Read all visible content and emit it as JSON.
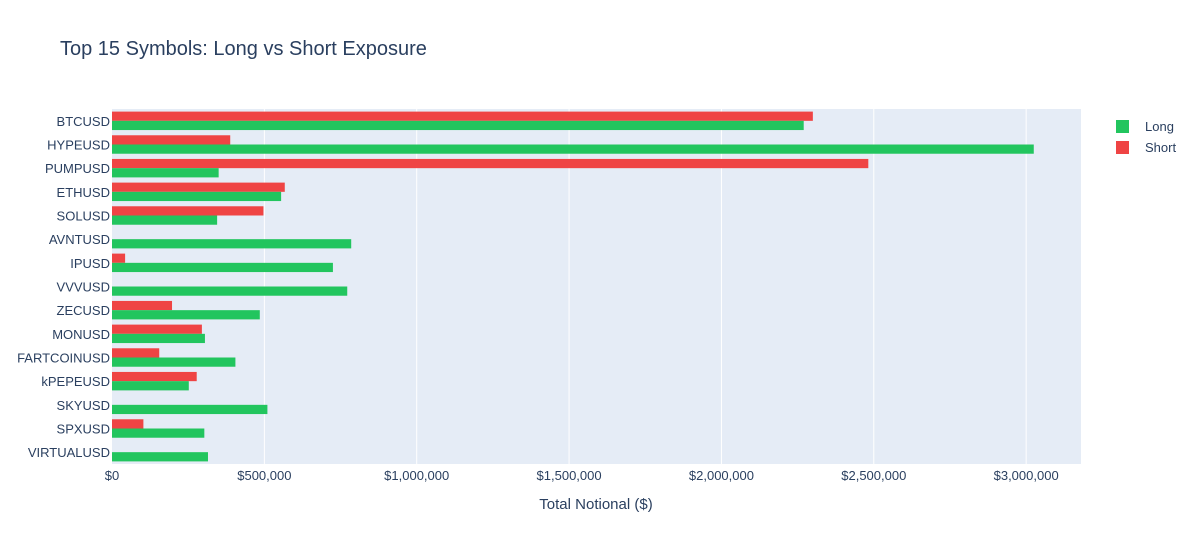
{
  "chart_data": {
    "type": "bar",
    "orientation": "horizontal",
    "title": "Top 15 Symbols: Long vs Short Exposure",
    "xlabel": "Total Notional ($)",
    "ylabel": "",
    "xlim": [
      0,
      3180000
    ],
    "x_ticks": [
      0,
      500000,
      1000000,
      1500000,
      2000000,
      2500000,
      3000000
    ],
    "x_tick_labels": [
      "$0",
      "$500,000",
      "$1,000,000",
      "$1,500,000",
      "$2,000,000",
      "$2,500,000",
      "$3,000,000"
    ],
    "grid": true,
    "legend_position": "top-right",
    "categories": [
      "BTCUSD",
      "HYPEUSD",
      "PUMPUSD",
      "ETHUSD",
      "SOLUSD",
      "AVNTUSD",
      "IPUSD",
      "VVVUSD",
      "ZECUSD",
      "MONUSD",
      "FARTCOINUSD",
      "kPEPEUSD",
      "SKYUSD",
      "SPXUSD",
      "VIRTUALUSD"
    ],
    "series": [
      {
        "name": "Long",
        "color": "#22c55e",
        "values": [
          2270000,
          3025000,
          350000,
          555000,
          345000,
          785000,
          725000,
          772000,
          485000,
          305000,
          405000,
          252000,
          510000,
          303000,
          315000
        ]
      },
      {
        "name": "Short",
        "color": "#ef4444",
        "values": [
          2300000,
          388000,
          2482000,
          567000,
          497000,
          0,
          43000,
          0,
          197000,
          295000,
          155000,
          278000,
          0,
          103000,
          0
        ]
      }
    ]
  }
}
